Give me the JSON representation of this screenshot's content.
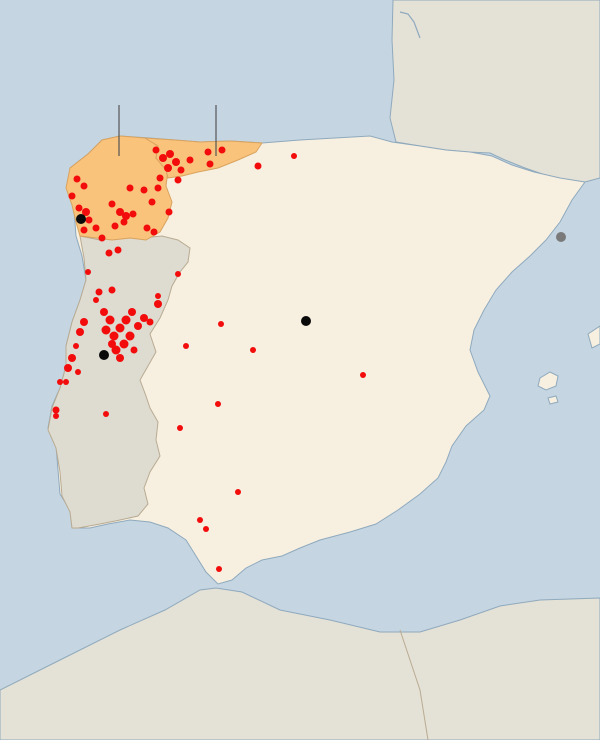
{
  "map": {
    "colors": {
      "sea": "#c5d6e2",
      "coast": "#8fa9bd",
      "france_africa": "#e4e1d6",
      "spain": "#f7f0e1",
      "portugal": "#dedbd1",
      "highlight_regions": "#f9c37c",
      "border": "#b9ab92",
      "fire": "#f20c0c",
      "city": "#0a0a0a",
      "city_foreign": "#7a7a7a",
      "callout_line": "#555555"
    },
    "highlighted_regions": [
      "galicia",
      "asturias"
    ],
    "cities": [
      {
        "id": "vigo",
        "kind": "city"
      },
      {
        "id": "coimbra",
        "kind": "city"
      },
      {
        "id": "madrid",
        "kind": "city"
      },
      {
        "id": "barcelona",
        "kind": "foreign"
      }
    ]
  }
}
